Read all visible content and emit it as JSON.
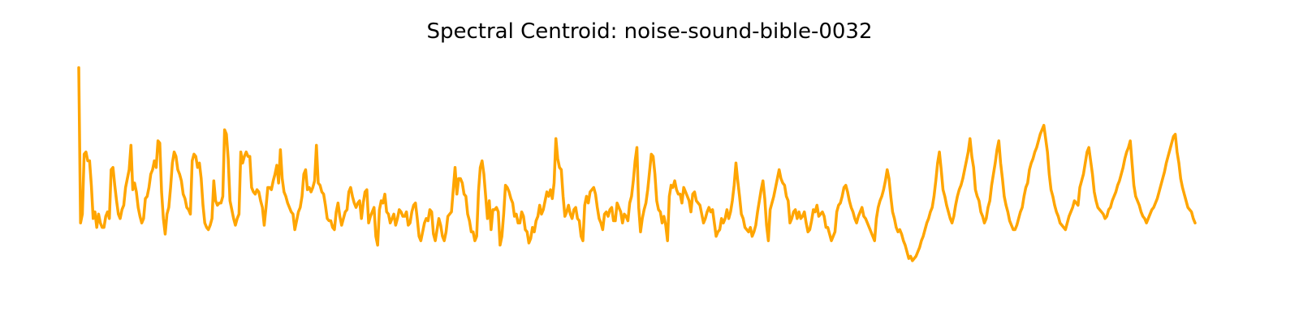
{
  "chart_data": {
    "type": "line",
    "title": "Spectral Centroid: noise-sound-bible-0032",
    "xlabel": "",
    "ylabel": "",
    "axes_visible": false,
    "grid": false,
    "color": "#FFA500",
    "x_start": 0,
    "ylim": [
      0,
      100
    ],
    "values": [
      98,
      28,
      32,
      59,
      60,
      56,
      56,
      45,
      30,
      33,
      26,
      32,
      28,
      26,
      26,
      31,
      33,
      30,
      52,
      53,
      45,
      38,
      32,
      30,
      34,
      36,
      44,
      48,
      52,
      63,
      43,
      46,
      42,
      35,
      31,
      28,
      30,
      39,
      40,
      44,
      50,
      52,
      56,
      53,
      65,
      64,
      42,
      30,
      23,
      32,
      35,
      44,
      55,
      60,
      58,
      52,
      50,
      47,
      41,
      39,
      35,
      34,
      32,
      56,
      59,
      58,
      53,
      55,
      48,
      36,
      28,
      26,
      25,
      27,
      30,
      47,
      38,
      36,
      37,
      37,
      40,
      70,
      68,
      57,
      38,
      34,
      30,
      27,
      30,
      32,
      60,
      55,
      58,
      60,
      58,
      58,
      44,
      42,
      41,
      43,
      42,
      38,
      35,
      27,
      35,
      44,
      44,
      43,
      47,
      50,
      54,
      46,
      61,
      48,
      42,
      40,
      37,
      35,
      33,
      32,
      25,
      29,
      33,
      35,
      40,
      50,
      52,
      43,
      44,
      42,
      44,
      47,
      63,
      46,
      45,
      42,
      41,
      36,
      30,
      29,
      29,
      26,
      25,
      33,
      37,
      31,
      27,
      30,
      33,
      34,
      42,
      44,
      40,
      37,
      35,
      37,
      38,
      30,
      37,
      42,
      43,
      28,
      31,
      33,
      35,
      22,
      18,
      34,
      38,
      37,
      41,
      33,
      32,
      28,
      30,
      32,
      27,
      30,
      34,
      33,
      31,
      31,
      33,
      27,
      28,
      33,
      36,
      37,
      30,
      22,
      20,
      24,
      28,
      30,
      29,
      34,
      33,
      23,
      20,
      25,
      30,
      27,
      22,
      20,
      24,
      31,
      32,
      33,
      43,
      53,
      41,
      48,
      48,
      46,
      41,
      40,
      32,
      29,
      24,
      24,
      20,
      22,
      42,
      53,
      56,
      50,
      40,
      30,
      38,
      25,
      34,
      34,
      35,
      33,
      18,
      22,
      32,
      45,
      44,
      42,
      39,
      37,
      31,
      32,
      28,
      28,
      33,
      31,
      25,
      24,
      19,
      21,
      26,
      24,
      29,
      31,
      36,
      32,
      34,
      38,
      42,
      40,
      43,
      39,
      46,
      66,
      57,
      53,
      52,
      40,
      31,
      33,
      36,
      32,
      30,
      34,
      35,
      30,
      29,
      22,
      20,
      36,
      40,
      37,
      42,
      43,
      44,
      41,
      35,
      30,
      28,
      25,
      32,
      33,
      31,
      34,
      35,
      29,
      29,
      37,
      35,
      33,
      28,
      32,
      31,
      29,
      37,
      40,
      47,
      56,
      62,
      35,
      24,
      30,
      34,
      37,
      43,
      51,
      59,
      58,
      50,
      38,
      34,
      33,
      28,
      31,
      27,
      20,
      40,
      45,
      44,
      47,
      43,
      41,
      41,
      37,
      44,
      42,
      40,
      38,
      33,
      41,
      42,
      38,
      37,
      36,
      32,
      28,
      30,
      33,
      35,
      33,
      34,
      28,
      22,
      24,
      25,
      30,
      28,
      30,
      34,
      30,
      33,
      38,
      45,
      55,
      47,
      40,
      32,
      30,
      26,
      25,
      24,
      26,
      22,
      24,
      27,
      33,
      38,
      43,
      47,
      39,
      27,
      20,
      34,
      37,
      40,
      44,
      48,
      52,
      48,
      46,
      45,
      40,
      38,
      28,
      30,
      33,
      34,
      30,
      33,
      30,
      31,
      33,
      28,
      24,
      25,
      29,
      34,
      33,
      36,
      31,
      32,
      33,
      31,
      26,
      26,
      23,
      20,
      22,
      24,
      33,
      36,
      37,
      40,
      44,
      45,
      42,
      38,
      35,
      33,
      30,
      28,
      31,
      33,
      35,
      31,
      30,
      28,
      26,
      24,
      22,
      20,
      30,
      35,
      38,
      40,
      43,
      47,
      52,
      48,
      40,
      33,
      30,
      26,
      24,
      25,
      23,
      20,
      18,
      15,
      12,
      13,
      11,
      12,
      13,
      15,
      17,
      20,
      22,
      25,
      28,
      30,
      33,
      35,
      40,
      47,
      55,
      60,
      52,
      43,
      40,
      36,
      33,
      30,
      28,
      31,
      36,
      40,
      43,
      45,
      48,
      52,
      56,
      60,
      66,
      58,
      53,
      43,
      40,
      38,
      33,
      31,
      28,
      30,
      35,
      38,
      45,
      50,
      55,
      61,
      65,
      55,
      48,
      40,
      36,
      33,
      29,
      27,
      25,
      25,
      27,
      30,
      33,
      35,
      40,
      44,
      46,
      52,
      55,
      57,
      60,
      62,
      65,
      68,
      70,
      72,
      66,
      60,
      50,
      43,
      40,
      36,
      33,
      31,
      28,
      27,
      26,
      25,
      28,
      31,
      33,
      35,
      38,
      37,
      36,
      44,
      47,
      50,
      55,
      60,
      62,
      56,
      50,
      42,
      38,
      35,
      34,
      33,
      32,
      30,
      31,
      34,
      35,
      38,
      40,
      42,
      45,
      47,
      50,
      53,
      57,
      60,
      62,
      65,
      55,
      45,
      40,
      38,
      36,
      33,
      31,
      30,
      28,
      30,
      32,
      34,
      35,
      37,
      39,
      42,
      45,
      48,
      51,
      55,
      58,
      61,
      64,
      67,
      68,
      60,
      55,
      48,
      44,
      41,
      38,
      35,
      34,
      33,
      30,
      28
    ]
  }
}
